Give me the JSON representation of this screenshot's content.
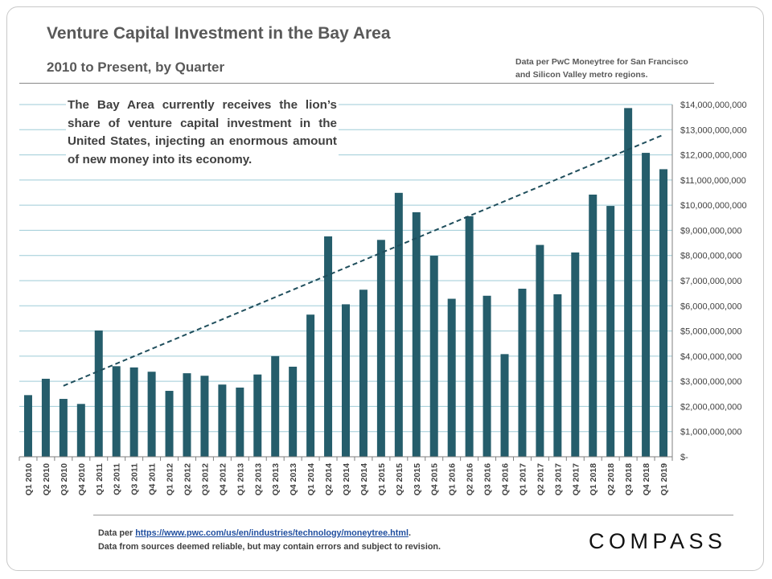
{
  "header": {
    "title": "Venture Capital Investment in the Bay Area",
    "subtitle": "2010 to Present, by Quarter",
    "source_note_line1": "Data per PwC Moneytree for San Francisco",
    "source_note_line2": "and Silicon Valley metro regions."
  },
  "annotation": "The Bay Area currently receives the lion’s share of venture capital investment in the United States, injecting an enormous amount of new money into its economy.",
  "footer": {
    "prefix": "Data per ",
    "link": "https://www.pwc.com/us/en/industries/technology/moneytree.html",
    "suffix": ".",
    "disclaimer": "Data from sources deemed reliable, but may contain errors and subject to revision.",
    "logo": "COMPASS"
  },
  "colors": {
    "bar": "#255d6b",
    "gridline": "#9ecbd7",
    "trendline": "#1f4e5c",
    "text": "#404040"
  },
  "chart_data": {
    "type": "bar",
    "title": "Venture Capital Investment in the Bay Area",
    "subtitle": "2010 to Present, by Quarter",
    "categories": [
      "Q1 2010",
      "Q2 2010",
      "Q3 2010",
      "Q4 2010",
      "Q1 2011",
      "Q2 2011",
      "Q3 2011",
      "Q4 2011",
      "Q1 2012",
      "Q2 2012",
      "Q3 2012",
      "Q4 2012",
      "Q1 2013",
      "Q2 2013",
      "Q3 2013",
      "Q4 2013",
      "Q1 2014",
      "Q2 2014",
      "Q3 2014",
      "Q4 2014",
      "Q1 2015",
      "Q2 2015",
      "Q3 2015",
      "Q4 2015",
      "Q1 2016",
      "Q2 2016",
      "Q3 2016",
      "Q4 2016",
      "Q1 2017",
      "Q2 2017",
      "Q3 2017",
      "Q4 2017",
      "Q1 2018",
      "Q2 2018",
      "Q3 2018",
      "Q4 2018",
      "Q1 2019"
    ],
    "values": [
      2450000000,
      3100000000,
      2300000000,
      2100000000,
      5020000000,
      3600000000,
      3550000000,
      3380000000,
      2620000000,
      3320000000,
      3220000000,
      2870000000,
      2750000000,
      3270000000,
      4000000000,
      3580000000,
      5650000000,
      8760000000,
      6060000000,
      6640000000,
      8620000000,
      10490000000,
      9720000000,
      7990000000,
      6280000000,
      9560000000,
      6400000000,
      4080000000,
      6680000000,
      8420000000,
      6460000000,
      8120000000,
      10420000000,
      9970000000,
      13860000000,
      12080000000,
      11430000000
    ],
    "trendline": {
      "type": "linear",
      "start_category": "Q3 2010",
      "end_category": "Q1 2019",
      "start_value": 2820000000,
      "end_value": 12800000000,
      "style": "dashed"
    },
    "ylim": [
      0,
      14000000000
    ],
    "y_ticks": [
      0,
      1000000000,
      2000000000,
      3000000000,
      4000000000,
      5000000000,
      6000000000,
      7000000000,
      8000000000,
      9000000000,
      10000000000,
      11000000000,
      12000000000,
      13000000000,
      14000000000
    ],
    "y_tick_labels": [
      "$-",
      "$1,000,000,000",
      "$2,000,000,000",
      "$3,000,000,000",
      "$4,000,000,000",
      "$5,000,000,000",
      "$6,000,000,000",
      "$7,000,000,000",
      "$8,000,000,000",
      "$9,000,000,000",
      "$10,000,000,000",
      "$11,000,000,000",
      "$12,000,000,000",
      "$13,000,000,000",
      "$14,000,000,000"
    ],
    "y_axis_position": "right",
    "grid": true,
    "legend": "none"
  }
}
